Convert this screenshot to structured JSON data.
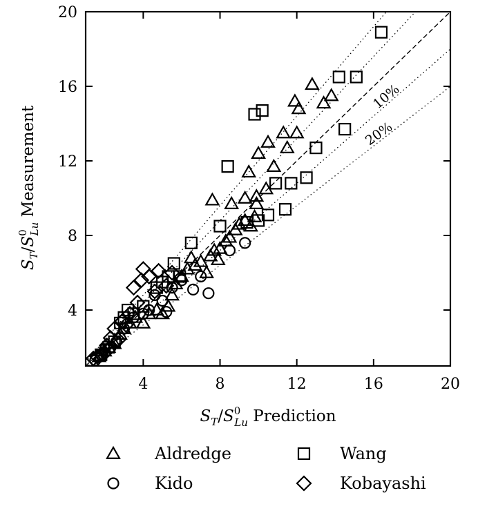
{
  "chart_data": {
    "type": "scatter",
    "title": "",
    "xlabel": "S_T/S_Lu^0 Prediction",
    "ylabel": "S_T/S_Lu^0 Measurement",
    "xlabel_parts": {
      "a": "S",
      "a_sub": "T",
      "slash": "/",
      "b": "S",
      "b_sup": "0",
      "b_sub": "Lu",
      "rest": " Prediction"
    },
    "ylabel_parts": {
      "a": "S",
      "a_sub": "T",
      "slash": "/",
      "b": "S",
      "b_sup": "0",
      "b_sub": "Lu",
      "rest": " Measurement"
    },
    "xlim": [
      1,
      20
    ],
    "ylim": [
      1,
      20
    ],
    "xticks": [
      4,
      8,
      12,
      16,
      20
    ],
    "yticks": [
      4,
      8,
      12,
      16,
      20
    ],
    "grid": false,
    "legend_position": "bottom",
    "reference_lines": [
      {
        "kind": "identity",
        "style": "dashed",
        "label": ""
      },
      {
        "kind": "band",
        "pct": 10,
        "style": "dotted",
        "label": "10%"
      },
      {
        "kind": "band",
        "pct": 20,
        "style": "dotted",
        "label": "20%"
      }
    ],
    "series": [
      {
        "name": "Aldredge",
        "marker": "triangle",
        "points": [
          [
            1.7,
            1.5
          ],
          [
            2.0,
            1.8
          ],
          [
            2.2,
            2.0
          ],
          [
            2.5,
            2.2
          ],
          [
            2.8,
            2.7
          ],
          [
            3.0,
            3.0
          ],
          [
            3.3,
            3.3
          ],
          [
            3.6,
            3.6
          ],
          [
            4.0,
            3.3
          ],
          [
            4.3,
            3.8
          ],
          [
            4.7,
            4.0
          ],
          [
            5.0,
            3.8
          ],
          [
            5.3,
            4.2
          ],
          [
            5.5,
            4.8
          ],
          [
            5.7,
            5.4
          ],
          [
            6.0,
            5.8
          ],
          [
            6.3,
            6.2
          ],
          [
            6.5,
            6.8
          ],
          [
            6.7,
            6.4
          ],
          [
            7.0,
            6.6
          ],
          [
            7.3,
            6.0
          ],
          [
            7.5,
            6.9
          ],
          [
            7.7,
            7.2
          ],
          [
            7.9,
            6.7
          ],
          [
            8.0,
            7.3
          ],
          [
            8.3,
            7.7
          ],
          [
            8.5,
            7.9
          ],
          [
            8.8,
            8.3
          ],
          [
            9.0,
            8.6
          ],
          [
            9.3,
            8.8
          ],
          [
            9.6,
            8.5
          ],
          [
            9.8,
            9.0
          ],
          [
            7.6,
            9.9
          ],
          [
            8.6,
            9.7
          ],
          [
            9.3,
            10.0
          ],
          [
            9.9,
            9.7
          ],
          [
            9.5,
            11.4
          ],
          [
            9.9,
            10.1
          ],
          [
            10.0,
            12.4
          ],
          [
            10.4,
            10.5
          ],
          [
            10.5,
            13.0
          ],
          [
            10.8,
            11.7
          ],
          [
            11.3,
            13.5
          ],
          [
            11.5,
            12.7
          ],
          [
            12.0,
            13.5
          ],
          [
            11.9,
            15.2
          ],
          [
            12.1,
            14.8
          ],
          [
            12.8,
            16.1
          ],
          [
            13.4,
            15.1
          ],
          [
            13.8,
            15.5
          ]
        ]
      },
      {
        "name": "Wang",
        "marker": "square",
        "points": [
          [
            1.8,
            1.6
          ],
          [
            2.2,
            2.0
          ],
          [
            2.5,
            2.3
          ],
          [
            2.8,
            3.3
          ],
          [
            3.0,
            3.6
          ],
          [
            3.2,
            4.0
          ],
          [
            3.5,
            3.8
          ],
          [
            4.0,
            4.2
          ],
          [
            4.7,
            5.2
          ],
          [
            5.0,
            5.5
          ],
          [
            5.3,
            5.8
          ],
          [
            5.6,
            6.5
          ],
          [
            5.9,
            5.8
          ],
          [
            6.5,
            7.6
          ],
          [
            8.0,
            8.5
          ],
          [
            8.4,
            11.7
          ],
          [
            9.4,
            8.7
          ],
          [
            9.8,
            14.5
          ],
          [
            10.2,
            14.7
          ],
          [
            10.0,
            8.8
          ],
          [
            10.5,
            9.1
          ],
          [
            10.9,
            10.8
          ],
          [
            11.4,
            9.4
          ],
          [
            11.7,
            10.8
          ],
          [
            12.5,
            11.1
          ],
          [
            13.0,
            12.7
          ],
          [
            14.2,
            16.5
          ],
          [
            14.5,
            13.7
          ],
          [
            15.1,
            16.5
          ],
          [
            16.4,
            18.9
          ]
        ]
      },
      {
        "name": "Kido",
        "marker": "circle",
        "points": [
          [
            1.5,
            1.3
          ],
          [
            1.8,
            1.6
          ],
          [
            2.0,
            1.9
          ],
          [
            2.3,
            2.0
          ],
          [
            2.6,
            2.3
          ],
          [
            3.0,
            3.0
          ],
          [
            3.5,
            3.6
          ],
          [
            4.0,
            3.8
          ],
          [
            4.3,
            4.0
          ],
          [
            4.6,
            4.8
          ],
          [
            5.0,
            4.5
          ],
          [
            5.2,
            3.9
          ],
          [
            5.5,
            5.2
          ],
          [
            6.0,
            5.6
          ],
          [
            6.6,
            5.1
          ],
          [
            7.0,
            5.8
          ],
          [
            7.4,
            4.9
          ],
          [
            8.5,
            7.2
          ],
          [
            9.3,
            7.6
          ]
        ]
      },
      {
        "name": "Kobayashi",
        "marker": "diamond",
        "points": [
          [
            1.4,
            1.4
          ],
          [
            1.6,
            1.5
          ],
          [
            1.8,
            1.6
          ],
          [
            2.0,
            1.7
          ],
          [
            2.1,
            2.1
          ],
          [
            2.3,
            2.5
          ],
          [
            2.5,
            3.0
          ],
          [
            2.7,
            2.4
          ],
          [
            2.9,
            3.4
          ],
          [
            3.1,
            3.2
          ],
          [
            3.3,
            3.8
          ],
          [
            3.5,
            5.2
          ],
          [
            3.7,
            4.4
          ],
          [
            3.9,
            5.6
          ],
          [
            4.0,
            6.2
          ],
          [
            4.3,
            5.8
          ],
          [
            4.6,
            5.0
          ],
          [
            4.8,
            6.1
          ],
          [
            5.2,
            5.3
          ],
          [
            5.5,
            6.0
          ]
        ]
      }
    ]
  }
}
